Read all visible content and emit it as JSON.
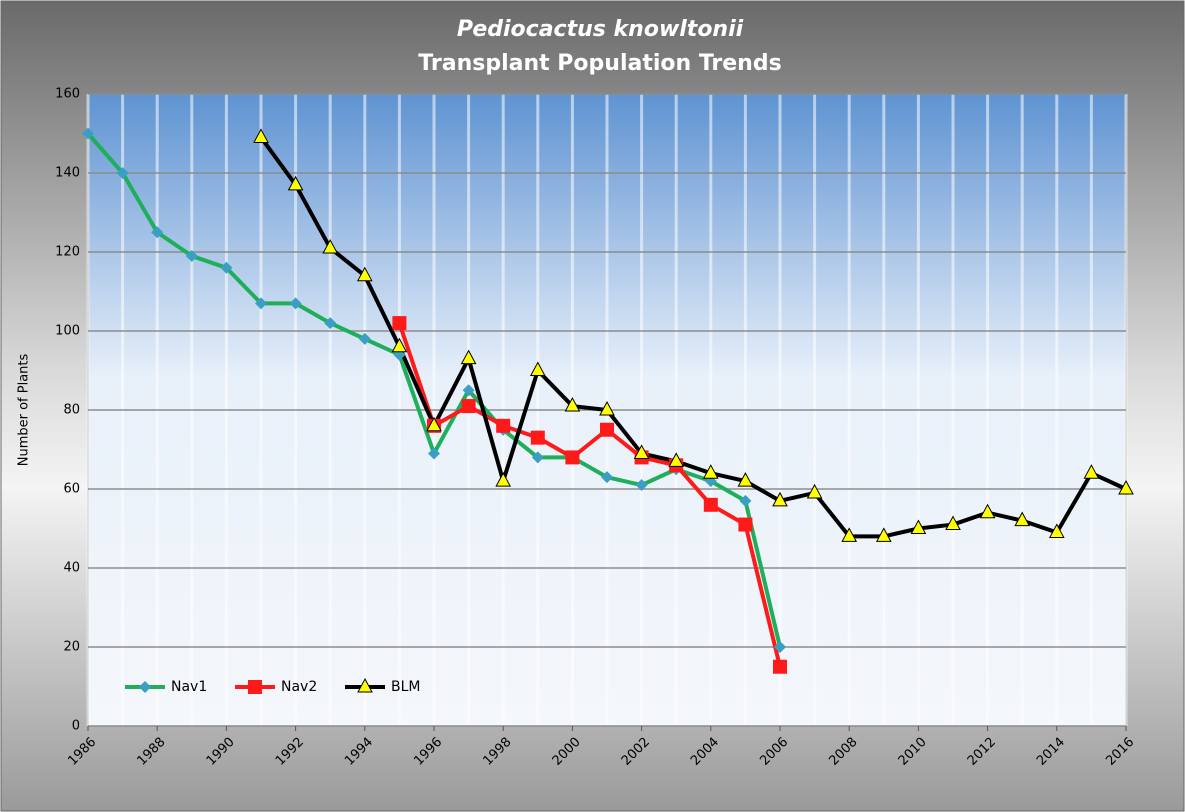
{
  "chart_data": {
    "type": "line",
    "title": "Pediocactus knowltonii",
    "subtitle": "Transplant Population Trends",
    "y_label": "Number of Plants",
    "x": [
      1986,
      1987,
      1988,
      1989,
      1990,
      1991,
      1992,
      1993,
      1994,
      1995,
      1996,
      1997,
      1998,
      1999,
      2000,
      2001,
      2002,
      2003,
      2004,
      2005,
      2006,
      2007,
      2008,
      2009,
      2010,
      2011,
      2012,
      2013,
      2014,
      2015,
      2016
    ],
    "series": [
      {
        "name": "Nav1",
        "color": "#1fae5a",
        "marker_color": "#3b9fc4",
        "marker": "diamond",
        "values": [
          150,
          140,
          125,
          119,
          116,
          107,
          107,
          102,
          98,
          94,
          69,
          85,
          75,
          68,
          68,
          63,
          61,
          65,
          62,
          57,
          20,
          null,
          null,
          null,
          null,
          null,
          null,
          null,
          null,
          null,
          null
        ]
      },
      {
        "name": "Nav2",
        "color": "#ff1a1a",
        "marker_color": "#ff1a1a",
        "marker": "square",
        "values": [
          null,
          null,
          null,
          null,
          null,
          null,
          null,
          null,
          null,
          102,
          76,
          81,
          76,
          73,
          68,
          75,
          68,
          66,
          56,
          51,
          15,
          null,
          null,
          null,
          null,
          null,
          null,
          null,
          null,
          null,
          null
        ]
      },
      {
        "name": "BLM",
        "color": "#000000",
        "marker_color": "#ffff00",
        "marker": "triangle",
        "values": [
          null,
          null,
          null,
          null,
          null,
          149,
          137,
          121,
          114,
          96,
          76,
          93,
          62,
          90,
          81,
          80,
          69,
          67,
          64,
          62,
          57,
          59,
          48,
          48,
          50,
          51,
          54,
          52,
          49,
          64,
          60
        ]
      }
    ],
    "xlim": [
      1986,
      2016
    ],
    "xticks": [
      1986,
      1988,
      1990,
      1992,
      1994,
      1996,
      1998,
      2000,
      2002,
      2004,
      2006,
      2008,
      2010,
      2012,
      2014,
      2016
    ],
    "ylim": [
      0,
      160
    ],
    "yticks": [
      0,
      20,
      40,
      60,
      80,
      100,
      120,
      140,
      160
    ],
    "grid": true,
    "legend": "lower-left"
  }
}
